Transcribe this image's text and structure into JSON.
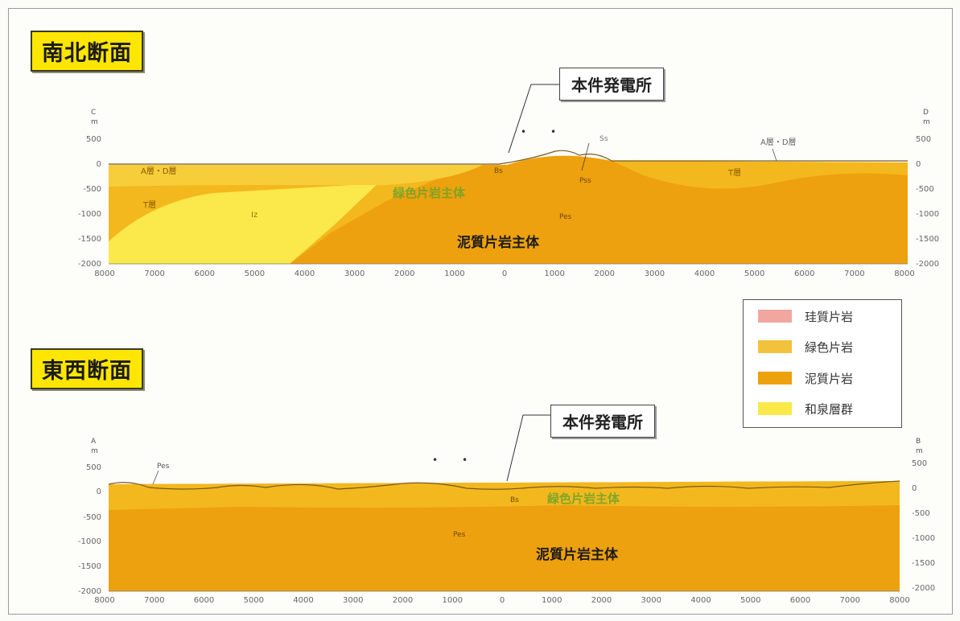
{
  "sections": {
    "ns": {
      "title": "南北断面",
      "callout": "本件発電所",
      "left_end": "C",
      "right_end": "D",
      "unit": "m",
      "y_ticks": [
        "500",
        "0",
        "-500",
        "-1000",
        "-1500",
        "-2000"
      ],
      "y_ticks_right": [
        "500",
        "0",
        "-500",
        "-1000",
        "-1500",
        "-2000"
      ],
      "x_ticks": [
        "8000",
        "7000",
        "6000",
        "5000",
        "4000",
        "3000",
        "2000",
        "1000",
        "0",
        "1000",
        "2000",
        "3000",
        "4000",
        "5000",
        "6000",
        "7000",
        "8000"
      ],
      "labels": {
        "ab_left": "A層・D層",
        "ab_right": "A層・D層",
        "t_left": "T層",
        "t_right": "T層",
        "iz": "Iz",
        "bs": "Bs",
        "ss": "Ss",
        "pss": "Pss",
        "pes": "Pes",
        "green_schist_main": "緑色片岩主体",
        "pelitic_schist_main": "泥質片岩主体"
      }
    },
    "ew": {
      "title": "東西断面",
      "callout": "本件発電所",
      "left_end": "A",
      "right_end": "B",
      "unit": "m",
      "y_ticks": [
        "500",
        "0",
        "-500",
        "-1000",
        "-1500",
        "-2000"
      ],
      "y_ticks_right": [
        "500",
        "0",
        "-500",
        "-1000",
        "-1500",
        "-2000"
      ],
      "x_ticks": [
        "8000",
        "7000",
        "6000",
        "5000",
        "4000",
        "3000",
        "2000",
        "1000",
        "0",
        "1000",
        "2000",
        "3000",
        "4000",
        "5000",
        "6000",
        "7000",
        "8000"
      ],
      "labels": {
        "pes_left": "Pes",
        "bs": "Bs",
        "pes": "Pes",
        "green_schist_main": "緑色片岩主体",
        "pelitic_schist_main": "泥質片岩主体"
      }
    }
  },
  "legend": [
    {
      "label": "珪質片岩",
      "color": "#f2a6a0"
    },
    {
      "label": "緑色片岩",
      "color": "#f3c23c"
    },
    {
      "label": "泥質片岩",
      "color": "#eda10e"
    },
    {
      "label": "和泉層群",
      "color": "#fbe84a"
    }
  ]
}
